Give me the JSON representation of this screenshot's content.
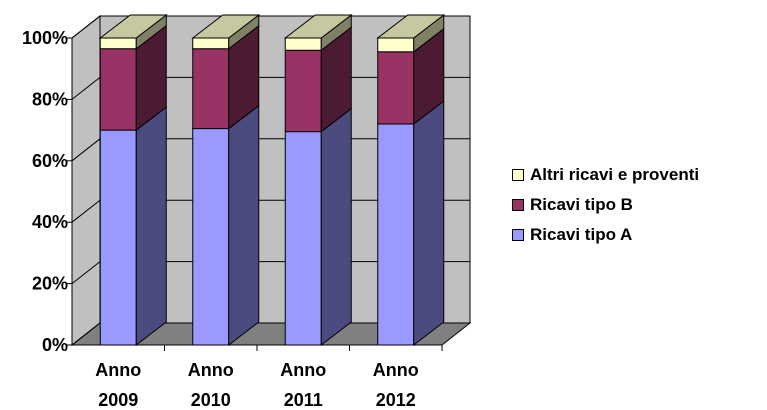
{
  "chart_data": {
    "type": "bar",
    "stacked": "percent",
    "categories": [
      [
        "Anno",
        "2009"
      ],
      [
        "Anno",
        "2010"
      ],
      [
        "Anno",
        "2011"
      ],
      [
        "Anno",
        "2012"
      ]
    ],
    "series": [
      {
        "name": "Ricavi tipo A",
        "values": [
          70,
          70.5,
          69.5,
          72
        ],
        "color": "#9999ff",
        "side_color": "#4b4b80"
      },
      {
        "name": "Ricavi tipo B",
        "values": [
          26.5,
          26,
          26.5,
          23.5
        ],
        "color": "#993366",
        "side_color": "#4d1a33"
      },
      {
        "name": "Altri ricavi e proventi",
        "values": [
          3.5,
          3.5,
          4,
          4.5
        ],
        "color": "#ffffcc",
        "side_color": "#808066"
      }
    ],
    "y_ticks": [
      "0%",
      "20%",
      "40%",
      "60%",
      "80%",
      "100%"
    ],
    "ylim": [
      0,
      100
    ],
    "grid": true,
    "legend_position": "right",
    "title": "",
    "xlabel": "",
    "ylabel": "",
    "colors": {
      "wall": "#c0c0c0",
      "floor": "#808080",
      "top_face": "#c8c8a0"
    }
  }
}
